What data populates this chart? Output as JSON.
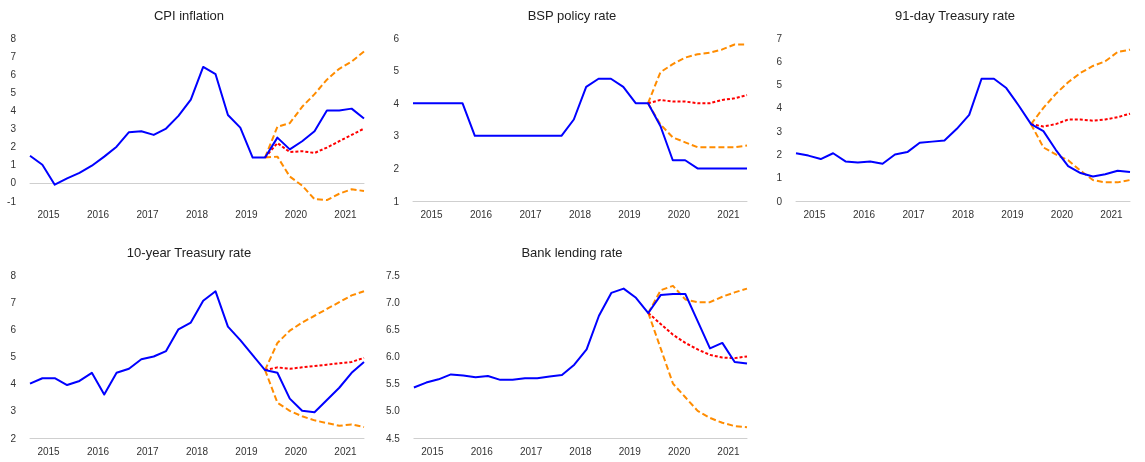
{
  "chart_data": [
    {
      "type": "line",
      "title": "CPI inflation",
      "x": [
        2015,
        2015.25,
        2015.5,
        2015.75,
        2016,
        2016.25,
        2016.5,
        2016.75,
        2017,
        2017.25,
        2017.5,
        2017.75,
        2018,
        2018.25,
        2018.5,
        2018.75,
        2019,
        2019.25,
        2019.5,
        2019.75,
        2020,
        2020.25,
        2020.5,
        2020.75,
        2021,
        2021.25,
        2021.5,
        2021.75
      ],
      "xlim": [
        2015,
        2021.75
      ],
      "xticks": [
        {
          "value": 2015.375,
          "label": "2015"
        },
        {
          "value": 2016.375,
          "label": "2016"
        },
        {
          "value": 2017.375,
          "label": "2017"
        },
        {
          "value": 2018.375,
          "label": "2018"
        },
        {
          "value": 2019.375,
          "label": "2019"
        },
        {
          "value": 2020.375,
          "label": "2020"
        },
        {
          "value": 2021.375,
          "label": "2021"
        }
      ],
      "ylim": [
        -1,
        8
      ],
      "yticks": [
        -1,
        0,
        1,
        2,
        3,
        4,
        5,
        6,
        7,
        8
      ],
      "series": [
        {
          "color": "#0000ff",
          "line_style": "solid",
          "values": [
            1.5,
            1.0,
            -0.1,
            0.25,
            0.55,
            0.95,
            1.45,
            2.0,
            2.8,
            2.85,
            2.65,
            3.0,
            3.7,
            4.6,
            6.4,
            6.0,
            3.75,
            3.05,
            1.4,
            1.4,
            2.5,
            1.85,
            2.3,
            2.85,
            4.0,
            4.0,
            4.1,
            3.55
          ]
        },
        {
          "color": "#ff0000",
          "line_style": "dotted",
          "x": [
            2019.75,
            2020,
            2020.25,
            2020.5,
            2020.75,
            2021,
            2021.25,
            2021.5,
            2021.75
          ],
          "values": [
            1.4,
            2.2,
            1.7,
            1.75,
            1.65,
            1.95,
            2.3,
            2.65,
            3.0
          ]
        },
        {
          "color": "#ff8c00",
          "line_style": "dashed",
          "x": [
            2019.75,
            2020,
            2020.25,
            2020.5,
            2020.75,
            2021,
            2021.25,
            2021.5,
            2021.75
          ],
          "values": [
            1.4,
            3.1,
            3.3,
            4.2,
            4.9,
            5.7,
            6.3,
            6.7,
            7.25
          ]
        },
        {
          "color": "#ff8c00",
          "line_style": "dashed",
          "x": [
            2019.75,
            2020,
            2020.25,
            2020.5,
            2020.75,
            2021,
            2021.25,
            2021.5,
            2021.75
          ],
          "values": [
            1.4,
            1.45,
            0.35,
            -0.15,
            -0.9,
            -0.95,
            -0.6,
            -0.35,
            -0.45
          ]
        }
      ]
    },
    {
      "type": "line",
      "title": "BSP policy rate",
      "x": [
        2015,
        2015.25,
        2015.5,
        2015.75,
        2016,
        2016.25,
        2016.5,
        2016.75,
        2017,
        2017.25,
        2017.5,
        2017.75,
        2018,
        2018.25,
        2018.5,
        2018.75,
        2019,
        2019.25,
        2019.5,
        2019.75,
        2020,
        2020.25,
        2020.5,
        2020.75,
        2021,
        2021.25,
        2021.5,
        2021.75
      ],
      "xlim": [
        2015,
        2021.75
      ],
      "xticks": [
        {
          "value": 2015.375,
          "label": "2015"
        },
        {
          "value": 2016.375,
          "label": "2016"
        },
        {
          "value": 2017.375,
          "label": "2017"
        },
        {
          "value": 2018.375,
          "label": "2018"
        },
        {
          "value": 2019.375,
          "label": "2019"
        },
        {
          "value": 2020.375,
          "label": "2020"
        },
        {
          "value": 2021.375,
          "label": "2021"
        }
      ],
      "ylim": [
        1,
        6
      ],
      "yticks": [
        1,
        2,
        3,
        4,
        5,
        6
      ],
      "series": [
        {
          "color": "#0000ff",
          "line_style": "solid",
          "values": [
            4,
            4,
            4,
            4,
            4,
            3,
            3,
            3,
            3,
            3,
            3,
            3,
            3,
            3.5,
            4.5,
            4.75,
            4.75,
            4.5,
            4,
            4,
            3.3,
            2.25,
            2.25,
            2,
            2,
            2,
            2,
            2
          ]
        },
        {
          "color": "#ff0000",
          "line_style": "dotted",
          "x": [
            2019.75,
            2020,
            2020.25,
            2020.5,
            2020.75,
            2021,
            2021.25,
            2021.5,
            2021.75
          ],
          "values": [
            4.0,
            4.1,
            4.05,
            4.05,
            4.0,
            4.0,
            4.1,
            4.15,
            4.25
          ]
        },
        {
          "color": "#ff8c00",
          "line_style": "dashed",
          "x": [
            2019.75,
            2020,
            2020.25,
            2020.5,
            2020.75,
            2021,
            2021.25,
            2021.5,
            2021.75
          ],
          "values": [
            4.0,
            4.95,
            5.2,
            5.4,
            5.5,
            5.55,
            5.65,
            5.8,
            5.8
          ]
        },
        {
          "color": "#ff8c00",
          "line_style": "dashed",
          "x": [
            2019.75,
            2020,
            2020.25,
            2020.5,
            2020.75,
            2021,
            2021.25,
            2021.5,
            2021.75
          ],
          "values": [
            4.0,
            3.35,
            2.95,
            2.8,
            2.65,
            2.65,
            2.65,
            2.65,
            2.7
          ]
        }
      ]
    },
    {
      "type": "line",
      "title": "91-day Treasury rate",
      "x": [
        2015,
        2015.25,
        2015.5,
        2015.75,
        2016,
        2016.25,
        2016.5,
        2016.75,
        2017,
        2017.25,
        2017.5,
        2017.75,
        2018,
        2018.25,
        2018.5,
        2018.75,
        2019,
        2019.25,
        2019.5,
        2019.75,
        2020,
        2020.25,
        2020.5,
        2020.75,
        2021,
        2021.25,
        2021.5,
        2021.75
      ],
      "xlim": [
        2015,
        2021.75
      ],
      "xticks": [
        {
          "value": 2015.375,
          "label": "2015"
        },
        {
          "value": 2016.375,
          "label": "2016"
        },
        {
          "value": 2017.375,
          "label": "2017"
        },
        {
          "value": 2018.375,
          "label": "2018"
        },
        {
          "value": 2019.375,
          "label": "2019"
        },
        {
          "value": 2020.375,
          "label": "2020"
        },
        {
          "value": 2021.375,
          "label": "2021"
        }
      ],
      "ylim": [
        0,
        7
      ],
      "yticks": [
        0,
        1,
        2,
        3,
        4,
        5,
        6,
        7
      ],
      "series": [
        {
          "color": "#0000ff",
          "line_style": "solid",
          "values": [
            2.05,
            1.95,
            1.8,
            2.05,
            1.7,
            1.65,
            1.7,
            1.6,
            2.0,
            2.1,
            2.5,
            2.55,
            2.6,
            3.1,
            3.7,
            5.25,
            5.25,
            4.85,
            4.1,
            3.3,
            3.0,
            2.2,
            1.5,
            1.2,
            1.05,
            1.15,
            1.3,
            1.25
          ]
        },
        {
          "color": "#ff0000",
          "line_style": "dotted",
          "x": [
            2019.75,
            2020,
            2020.25,
            2020.5,
            2020.75,
            2021,
            2021.25,
            2021.5,
            2021.75
          ],
          "values": [
            3.3,
            3.2,
            3.3,
            3.5,
            3.5,
            3.45,
            3.5,
            3.6,
            3.75
          ]
        },
        {
          "color": "#ff8c00",
          "line_style": "dashed",
          "x": [
            2019.75,
            2020,
            2020.25,
            2020.5,
            2020.75,
            2021,
            2021.25,
            2021.5,
            2021.75
          ],
          "values": [
            3.3,
            4.0,
            4.6,
            5.1,
            5.5,
            5.8,
            6.0,
            6.4,
            6.5
          ]
        },
        {
          "color": "#ff8c00",
          "line_style": "dashed",
          "x": [
            2019.75,
            2020,
            2020.25,
            2020.5,
            2020.75,
            2021,
            2021.25,
            2021.5,
            2021.75
          ],
          "values": [
            3.3,
            2.3,
            2.0,
            1.75,
            1.3,
            0.9,
            0.8,
            0.8,
            0.9
          ]
        }
      ]
    },
    {
      "type": "line",
      "title": "10-year Treasury rate",
      "x": [
        2015,
        2015.25,
        2015.5,
        2015.75,
        2016,
        2016.25,
        2016.5,
        2016.75,
        2017,
        2017.25,
        2017.5,
        2017.75,
        2018,
        2018.25,
        2018.5,
        2018.75,
        2019,
        2019.25,
        2019.5,
        2019.75,
        2020,
        2020.25,
        2020.5,
        2020.75,
        2021,
        2021.25,
        2021.5,
        2021.75
      ],
      "xlim": [
        2015,
        2021.75
      ],
      "xticks": [
        {
          "value": 2015.375,
          "label": "2015"
        },
        {
          "value": 2016.375,
          "label": "2016"
        },
        {
          "value": 2017.375,
          "label": "2017"
        },
        {
          "value": 2018.375,
          "label": "2018"
        },
        {
          "value": 2019.375,
          "label": "2019"
        },
        {
          "value": 2020.375,
          "label": "2020"
        },
        {
          "value": 2021.375,
          "label": "2021"
        }
      ],
      "ylim": [
        2,
        8
      ],
      "yticks": [
        2,
        3,
        4,
        5,
        6,
        7,
        8
      ],
      "series": [
        {
          "color": "#0000ff",
          "line_style": "solid",
          "values": [
            4.0,
            4.2,
            4.2,
            3.95,
            4.1,
            4.4,
            3.6,
            4.4,
            4.55,
            4.9,
            5.0,
            5.2,
            6.0,
            6.25,
            7.05,
            7.4,
            6.1,
            5.6,
            5.05,
            4.5,
            4.4,
            3.45,
            3.0,
            2.95,
            3.4,
            3.85,
            4.4,
            4.8
          ]
        },
        {
          "color": "#ff0000",
          "line_style": "dotted",
          "x": [
            2019.75,
            2020,
            2020.25,
            2020.5,
            2020.75,
            2021,
            2021.25,
            2021.5,
            2021.75
          ],
          "values": [
            4.5,
            4.6,
            4.55,
            4.6,
            4.65,
            4.7,
            4.75,
            4.8,
            4.95
          ]
        },
        {
          "color": "#ff8c00",
          "line_style": "dashed",
          "x": [
            2019.75,
            2020,
            2020.25,
            2020.5,
            2020.75,
            2021,
            2021.25,
            2021.5,
            2021.75
          ],
          "values": [
            4.5,
            5.5,
            5.95,
            6.25,
            6.5,
            6.75,
            7.0,
            7.25,
            7.4
          ]
        },
        {
          "color": "#ff8c00",
          "line_style": "dashed",
          "x": [
            2019.75,
            2020,
            2020.25,
            2020.5,
            2020.75,
            2021,
            2021.25,
            2021.5,
            2021.75
          ],
          "values": [
            4.5,
            3.3,
            3.0,
            2.8,
            2.65,
            2.55,
            2.45,
            2.5,
            2.4
          ]
        }
      ]
    },
    {
      "type": "line",
      "title": "Bank lending rate",
      "x": [
        2015,
        2015.25,
        2015.5,
        2015.75,
        2016,
        2016.25,
        2016.5,
        2016.75,
        2017,
        2017.25,
        2017.5,
        2017.75,
        2018,
        2018.25,
        2018.5,
        2018.75,
        2019,
        2019.25,
        2019.5,
        2019.75,
        2020,
        2020.25,
        2020.5,
        2020.75,
        2021,
        2021.25,
        2021.5,
        2021.75
      ],
      "xlim": [
        2015,
        2021.75
      ],
      "xticks": [
        {
          "value": 2015.375,
          "label": "2015"
        },
        {
          "value": 2016.375,
          "label": "2016"
        },
        {
          "value": 2017.375,
          "label": "2017"
        },
        {
          "value": 2018.375,
          "label": "2018"
        },
        {
          "value": 2019.375,
          "label": "2019"
        },
        {
          "value": 2020.375,
          "label": "2020"
        },
        {
          "value": 2021.375,
          "label": "2021"
        }
      ],
      "ylim": [
        4.5,
        7.5
      ],
      "yticks": [
        {
          "value": 4.5,
          "label": "4.5"
        },
        {
          "value": 5,
          "label": "5.0"
        },
        {
          "value": 5.5,
          "label": "5.5"
        },
        {
          "value": 6,
          "label": "6.0"
        },
        {
          "value": 6.5,
          "label": "6.5"
        },
        {
          "value": 7,
          "label": "7.0"
        },
        {
          "value": 7.5,
          "label": "7.5"
        }
      ],
      "series": [
        {
          "color": "#0000ff",
          "line_style": "solid",
          "values": [
            5.43,
            5.52,
            5.58,
            5.67,
            5.65,
            5.62,
            5.64,
            5.57,
            5.57,
            5.6,
            5.6,
            5.63,
            5.66,
            5.85,
            6.13,
            6.75,
            7.17,
            7.25,
            7.08,
            6.8,
            7.13,
            7.15,
            7.15,
            6.65,
            6.15,
            6.25,
            5.9,
            5.87
          ]
        },
        {
          "color": "#ff0000",
          "line_style": "dotted",
          "x": [
            2019.75,
            2020,
            2020.25,
            2020.5,
            2020.75,
            2021,
            2021.25,
            2021.5,
            2021.75
          ],
          "values": [
            6.8,
            6.6,
            6.4,
            6.25,
            6.13,
            6.03,
            5.98,
            5.97,
            6.0
          ]
        },
        {
          "color": "#ff8c00",
          "line_style": "dashed",
          "x": [
            2019.75,
            2020,
            2020.25,
            2020.5,
            2020.75,
            2021,
            2021.25,
            2021.5,
            2021.75
          ],
          "values": [
            6.8,
            7.22,
            7.3,
            7.05,
            7.0,
            7.0,
            7.1,
            7.18,
            7.25
          ]
        },
        {
          "color": "#ff8c00",
          "line_style": "dashed",
          "x": [
            2019.75,
            2020,
            2020.25,
            2020.5,
            2020.75,
            2021,
            2021.25,
            2021.5,
            2021.75
          ],
          "values": [
            6.8,
            6.15,
            5.5,
            5.25,
            5.0,
            4.87,
            4.78,
            4.72,
            4.7
          ]
        }
      ]
    }
  ]
}
